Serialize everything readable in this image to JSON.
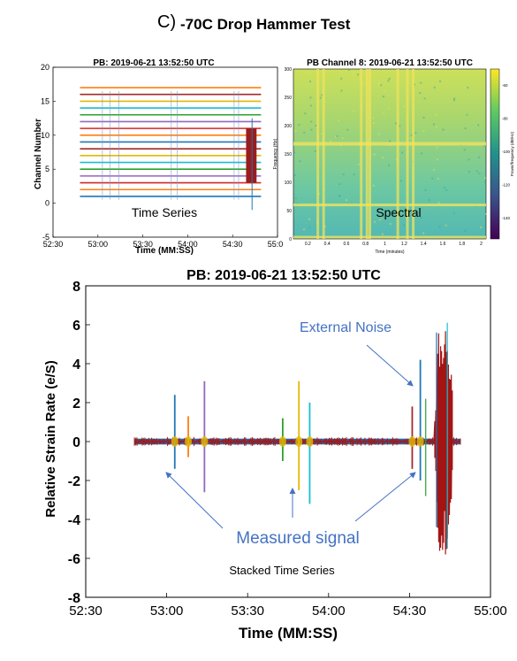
{
  "figure": {
    "label": "C)",
    "title": "-70C Drop Hammer Test"
  },
  "chart_data": [
    {
      "type": "line",
      "title": "PB: 2019-06-21 13:52:50 UTC",
      "xlabel": "Time (MM:SS)",
      "ylabel": "Channel Number",
      "annotation": "Time Series",
      "x_tick_labels": [
        "52:30",
        "53:00",
        "53:30",
        "54:00",
        "54:30",
        "55:00"
      ],
      "y_ticks": [
        -5,
        0,
        5,
        10,
        15,
        20
      ],
      "ylim": [
        -5,
        20
      ],
      "channel_offsets": [
        1,
        2,
        3,
        4,
        5,
        6,
        7,
        8,
        9,
        10,
        11,
        12,
        13,
        14,
        15,
        16,
        17
      ],
      "channel_colors": [
        "#1f77b4",
        "#ff7f0e",
        "#d62728",
        "#9467bd",
        "#2ca02c",
        "#17becf",
        "#e6b800",
        "#a52a2a",
        "#1f77b4",
        "#ff7f0e",
        "#d62728",
        "#9467bd",
        "#2ca02c",
        "#17becf",
        "#e6b800",
        "#a52a2a",
        "#ff7f0e"
      ],
      "grid": false
    },
    {
      "type": "heatmap",
      "title": "PB Channel 8: 2019-06-21 13:52:50 UTC",
      "xlabel": "Time (minutes)",
      "ylabel": "Frequency (Hz)",
      "annotation": "Spectral",
      "x_ticks": [
        "0.2",
        "0.4",
        "0.6",
        "0.8",
        "1",
        "1.2",
        "1.4",
        "1.6",
        "1.8",
        "2"
      ],
      "y_ticks": [
        "0",
        "50",
        "100",
        "150",
        "200",
        "250",
        "300"
      ],
      "colorbar_label": "Power/frequency (dB/Hz)",
      "colorbar_ticks": [
        "-60",
        "-80",
        "-100",
        "-120",
        "-140"
      ],
      "colorbar_colors": [
        "#440154",
        "#3b528b",
        "#21918c",
        "#5ec962",
        "#fde725"
      ]
    },
    {
      "type": "line",
      "title": "PB: 2019-06-21 13:52:50 UTC",
      "xlabel": "Time (MM:SS)",
      "ylabel": "Relative Strain Rate (e/S)",
      "x_tick_labels": [
        "52:30",
        "53:00",
        "53:30",
        "54:00",
        "54:30",
        "55:00"
      ],
      "y_ticks": [
        -8,
        -6,
        -4,
        -2,
        0,
        2,
        4,
        6,
        8
      ],
      "ylim": [
        -8,
        8
      ],
      "annotations": {
        "external_noise": "External Noise",
        "measured_signal": "Measured signal",
        "stacked": "Stacked Time Series"
      },
      "series_colors": [
        "#1f77b4",
        "#ff7f0e",
        "#9467bd",
        "#2ca02c",
        "#e6b800",
        "#17becf",
        "#a52a2a"
      ],
      "spikes": [
        {
          "t": "53:03",
          "max": 2.4,
          "min": -1.4
        },
        {
          "t": "53:08",
          "max": 1.3,
          "min": -0.8
        },
        {
          "t": "53:14",
          "max": 3.1,
          "min": -2.6
        },
        {
          "t": "53:43",
          "max": 1.2,
          "min": -1.0
        },
        {
          "t": "53:49",
          "max": 3.1,
          "min": -2.5
        },
        {
          "t": "53:53",
          "max": 2.0,
          "min": -3.2
        },
        {
          "t": "54:31",
          "max": 1.8,
          "min": -1.4
        },
        {
          "t": "54:34",
          "max": 4.2,
          "min": -2.0
        }
      ],
      "noise_burst": {
        "start": "54:39",
        "end": "54:46",
        "max": 6.3,
        "min": -6.0
      },
      "baseline": {
        "start": "52:48",
        "end": "54:49",
        "value": 0
      }
    }
  ]
}
